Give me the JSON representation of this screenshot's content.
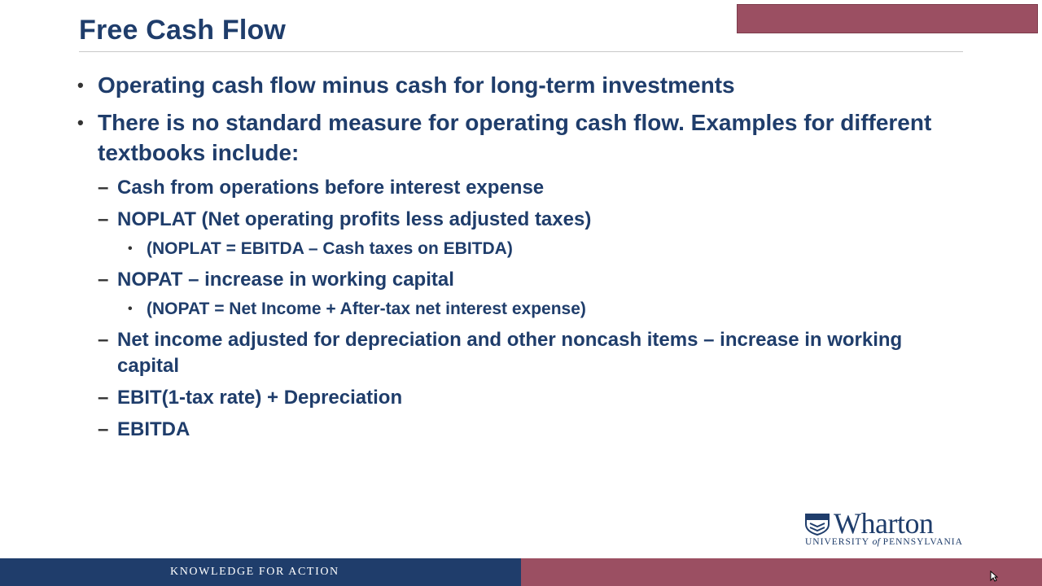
{
  "slide": {
    "title": "Free Cash Flow",
    "bullets": [
      {
        "text": "Operating cash flow minus cash for long-term investments"
      },
      {
        "text": "There is no standard measure for operating cash flow.  Examples for different textbooks include:",
        "items": [
          {
            "text": "Cash from operations before interest expense"
          },
          {
            "text": "NOPLAT (Net operating profits less adjusted taxes)",
            "sub": "(NOPLAT = EBITDA – Cash taxes on EBITDA)"
          },
          {
            "text": "NOPAT – increase in working capital",
            "sub": "(NOPAT = Net Income + After-tax net interest expense)"
          },
          {
            "text": "Net income adjusted for depreciation and other noncash items – increase in working capital"
          },
          {
            "text": "EBIT(1-tax rate) + Depreciation"
          },
          {
            "text": "EBITDA"
          }
        ]
      }
    ],
    "bullet_mark": "•",
    "dash_mark": "–"
  },
  "logo": {
    "wordmark": "Wharton",
    "university_pre": "UNIVERSITY ",
    "university_of": "of",
    "university_post": " PENNSYLVANIA"
  },
  "footer": {
    "tagline": "KNOWLEDGE FOR ACTION"
  },
  "colors": {
    "navy": "#1f3d6b",
    "maroon": "#9b4f62"
  }
}
